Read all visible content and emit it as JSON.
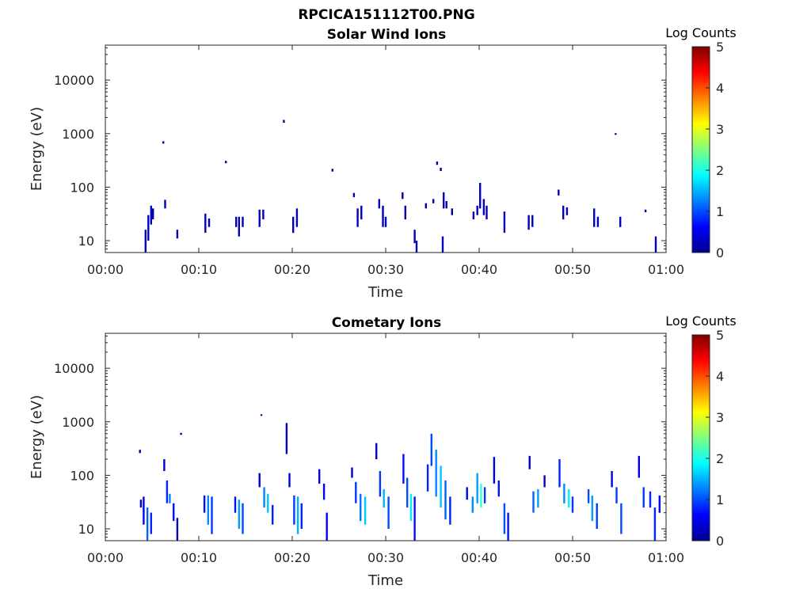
{
  "figure": {
    "title": "RPCICA151112T00.PNG"
  },
  "chart_data": [
    {
      "type": "heatmap",
      "title": "Solar Wind Ions",
      "xlabel": "Time",
      "ylabel": "Energy (eV)",
      "x_ticks": [
        "00:00",
        "00:10",
        "00:20",
        "00:30",
        "00:40",
        "00:50",
        "01:00"
      ],
      "x_range_min": [
        0,
        60
      ],
      "y_scale": "log",
      "y_ticks": [
        "10",
        "100",
        "1000",
        "10000"
      ],
      "ylim": [
        6,
        45000
      ],
      "grid": false,
      "colorbar": {
        "label": "Log Counts",
        "min": 0,
        "max": 5,
        "ticks": [
          "0",
          "1",
          "2",
          "3",
          "4",
          "5"
        ],
        "colormap": "jet"
      },
      "cells": [
        [
          4.2,
          6,
          16,
          0.3
        ],
        [
          4.5,
          10,
          30,
          0.3
        ],
        [
          4.8,
          20,
          45,
          0.3
        ],
        [
          5.0,
          25,
          40,
          0.2
        ],
        [
          6.1,
          650,
          720,
          0.2
        ],
        [
          6.3,
          40,
          58,
          0.3
        ],
        [
          7.6,
          11,
          16,
          0.3
        ],
        [
          10.6,
          14,
          32,
          0.3
        ],
        [
          11.0,
          18,
          26,
          0.3
        ],
        [
          12.8,
          280,
          310,
          0.2
        ],
        [
          13.9,
          18,
          28,
          0.3
        ],
        [
          14.2,
          12,
          28,
          0.3
        ],
        [
          14.6,
          18,
          28,
          0.3
        ],
        [
          16.4,
          18,
          38,
          0.3
        ],
        [
          16.8,
          25,
          38,
          0.3
        ],
        [
          19.0,
          1600,
          1800,
          0.2
        ],
        [
          20.0,
          14,
          28,
          0.3
        ],
        [
          20.4,
          18,
          40,
          0.3
        ],
        [
          24.2,
          195,
          220,
          0.2
        ],
        [
          26.5,
          65,
          78,
          0.2
        ],
        [
          26.9,
          18,
          40,
          0.3
        ],
        [
          27.3,
          25,
          45,
          0.3
        ],
        [
          29.2,
          40,
          60,
          0.3
        ],
        [
          29.6,
          18,
          45,
          0.3
        ],
        [
          29.9,
          18,
          28,
          0.3
        ],
        [
          31.7,
          60,
          80,
          0.2
        ],
        [
          32.0,
          25,
          45,
          0.3
        ],
        [
          33.0,
          9,
          16,
          0.3
        ],
        [
          33.2,
          6,
          10,
          0.3
        ],
        [
          34.2,
          40,
          50,
          0.2
        ],
        [
          35.0,
          50,
          60,
          0.2
        ],
        [
          35.4,
          260,
          300,
          0.2
        ],
        [
          35.8,
          200,
          230,
          0.2
        ],
        [
          36.0,
          6,
          12,
          0.3
        ],
        [
          36.1,
          40,
          80,
          0.3
        ],
        [
          36.4,
          40,
          55,
          0.2
        ],
        [
          37.0,
          30,
          40,
          0.2
        ],
        [
          39.3,
          25,
          35,
          0.3
        ],
        [
          39.7,
          30,
          45,
          0.3
        ],
        [
          40.0,
          40,
          120,
          0.3
        ],
        [
          40.4,
          30,
          60,
          0.3
        ],
        [
          40.7,
          25,
          45,
          0.3
        ],
        [
          42.6,
          14,
          35,
          0.3
        ],
        [
          45.2,
          16,
          30,
          0.3
        ],
        [
          45.6,
          18,
          30,
          0.3
        ],
        [
          48.4,
          70,
          90,
          0.2
        ],
        [
          48.9,
          25,
          45,
          0.3
        ],
        [
          49.3,
          30,
          42,
          0.3
        ],
        [
          52.2,
          18,
          40,
          0.3
        ],
        [
          52.6,
          18,
          28,
          0.3
        ],
        [
          54.5,
          950,
          1020,
          0.2
        ],
        [
          55.0,
          18,
          28,
          0.3
        ],
        [
          57.7,
          34,
          38,
          0.2
        ],
        [
          58.8,
          6,
          12,
          0.3
        ]
      ]
    },
    {
      "type": "heatmap",
      "title": "Cometary Ions",
      "xlabel": "Time",
      "ylabel": "Energy (eV)",
      "x_ticks": [
        "00:00",
        "00:10",
        "00:20",
        "00:30",
        "00:40",
        "00:50",
        "01:00"
      ],
      "x_range_min": [
        0,
        60
      ],
      "y_scale": "log",
      "y_ticks": [
        "10",
        "100",
        "1000",
        "10000"
      ],
      "ylim": [
        6,
        45000
      ],
      "grid": false,
      "colorbar": {
        "label": "Log Counts",
        "min": 0,
        "max": 5,
        "ticks": [
          "0",
          "1",
          "2",
          "3",
          "4",
          "5"
        ],
        "colormap": "jet"
      },
      "cells": [
        [
          3.6,
          260,
          300,
          0.3
        ],
        [
          3.7,
          25,
          35,
          0.3
        ],
        [
          4.0,
          12,
          40,
          0.6
        ],
        [
          4.4,
          6,
          25,
          1.1
        ],
        [
          4.8,
          8,
          20,
          0.8
        ],
        [
          6.2,
          120,
          200,
          0.4
        ],
        [
          6.5,
          30,
          80,
          0.8
        ],
        [
          6.8,
          30,
          45,
          1.3
        ],
        [
          7.2,
          14,
          30,
          0.7
        ],
        [
          7.6,
          6,
          16,
          0.4
        ],
        [
          8.0,
          570,
          620,
          0.3
        ],
        [
          10.5,
          20,
          42,
          0.7
        ],
        [
          10.9,
          12,
          42,
          1.3
        ],
        [
          11.3,
          8,
          40,
          0.9
        ],
        [
          13.8,
          20,
          40,
          0.7
        ],
        [
          14.2,
          10,
          35,
          1.4
        ],
        [
          14.6,
          8,
          30,
          1.0
        ],
        [
          16.4,
          60,
          110,
          0.4
        ],
        [
          16.6,
          1300,
          1380,
          0.3
        ],
        [
          16.9,
          25,
          60,
          1.3
        ],
        [
          17.3,
          20,
          45,
          1.6
        ],
        [
          17.8,
          12,
          28,
          0.8
        ],
        [
          19.3,
          250,
          950,
          0.3
        ],
        [
          19.6,
          60,
          110,
          0.5
        ],
        [
          20.1,
          12,
          42,
          0.9
        ],
        [
          20.5,
          8,
          40,
          1.5
        ],
        [
          20.9,
          10,
          30,
          0.8
        ],
        [
          22.8,
          70,
          130,
          0.5
        ],
        [
          23.3,
          35,
          70,
          0.6
        ],
        [
          23.6,
          6,
          20,
          0.6
        ],
        [
          26.3,
          90,
          140,
          0.4
        ],
        [
          26.7,
          30,
          75,
          0.9
        ],
        [
          27.2,
          14,
          45,
          1.2
        ],
        [
          27.7,
          12,
          40,
          1.6
        ],
        [
          28.9,
          200,
          400,
          0.3
        ],
        [
          29.3,
          40,
          120,
          0.9
        ],
        [
          29.7,
          25,
          55,
          1.5
        ],
        [
          30.2,
          10,
          40,
          1.0
        ],
        [
          31.8,
          70,
          250,
          0.7
        ],
        [
          32.2,
          25,
          90,
          1.0
        ],
        [
          32.6,
          14,
          45,
          1.8
        ],
        [
          33.0,
          6,
          40,
          0.7
        ],
        [
          34.4,
          50,
          160,
          0.8
        ],
        [
          34.8,
          150,
          600,
          1.0
        ],
        [
          35.3,
          40,
          300,
          1.3
        ],
        [
          35.8,
          25,
          150,
          1.6
        ],
        [
          36.3,
          15,
          80,
          1.1
        ],
        [
          36.8,
          12,
          40,
          0.8
        ],
        [
          38.6,
          35,
          60,
          0.6
        ],
        [
          39.2,
          20,
          40,
          1.3
        ],
        [
          39.7,
          30,
          110,
          1.4
        ],
        [
          40.1,
          25,
          70,
          2.1
        ],
        [
          40.5,
          30,
          60,
          0.9
        ],
        [
          41.5,
          70,
          220,
          0.5
        ],
        [
          42.0,
          40,
          80,
          0.7
        ],
        [
          42.6,
          8,
          30,
          1.0
        ],
        [
          43.0,
          6,
          20,
          0.7
        ],
        [
          45.3,
          130,
          230,
          0.3
        ],
        [
          45.7,
          20,
          50,
          1.1
        ],
        [
          46.2,
          25,
          55,
          1.4
        ],
        [
          46.9,
          60,
          100,
          0.4
        ],
        [
          48.5,
          60,
          200,
          0.8
        ],
        [
          49.0,
          30,
          70,
          1.3
        ],
        [
          49.5,
          25,
          55,
          1.8
        ],
        [
          49.9,
          20,
          40,
          0.9
        ],
        [
          51.6,
          30,
          55,
          1.0
        ],
        [
          52.0,
          14,
          42,
          1.4
        ],
        [
          52.5,
          10,
          30,
          0.9
        ],
        [
          54.1,
          60,
          120,
          0.5
        ],
        [
          54.6,
          30,
          60,
          0.9
        ],
        [
          55.1,
          8,
          30,
          1.0
        ],
        [
          57.0,
          90,
          230,
          0.5
        ],
        [
          57.5,
          25,
          60,
          0.9
        ],
        [
          58.2,
          25,
          50,
          0.8
        ],
        [
          58.7,
          6,
          25,
          0.8
        ],
        [
          59.2,
          20,
          42,
          0.6
        ]
      ]
    }
  ]
}
